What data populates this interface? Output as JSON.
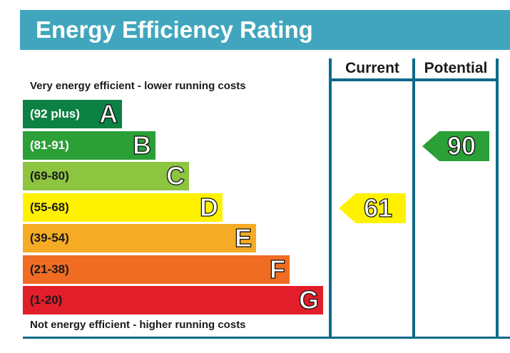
{
  "title": "Energy Efficiency Rating",
  "columns": {
    "current": "Current",
    "potential": "Potential"
  },
  "top_caption": "Very energy efficient - lower running costs",
  "bottom_caption": "Not energy efficient - higher running costs",
  "chart_data": {
    "type": "bar",
    "categories": [
      "A",
      "B",
      "C",
      "D",
      "E",
      "F",
      "G"
    ],
    "ranges": [
      "(92 plus)",
      "(81-91)",
      "(69-80)",
      "(55-68)",
      "(39-54)",
      "(21-38)",
      "(1-20)"
    ],
    "colors": [
      "#0d8043",
      "#2aa036",
      "#8dc540",
      "#fff200",
      "#f6ab24",
      "#ef6c22",
      "#e21e2a"
    ],
    "current": {
      "value": 61,
      "band": "D",
      "color": "#fff200"
    },
    "potential": {
      "value": 90,
      "band": "B",
      "color": "#2aa036"
    }
  }
}
